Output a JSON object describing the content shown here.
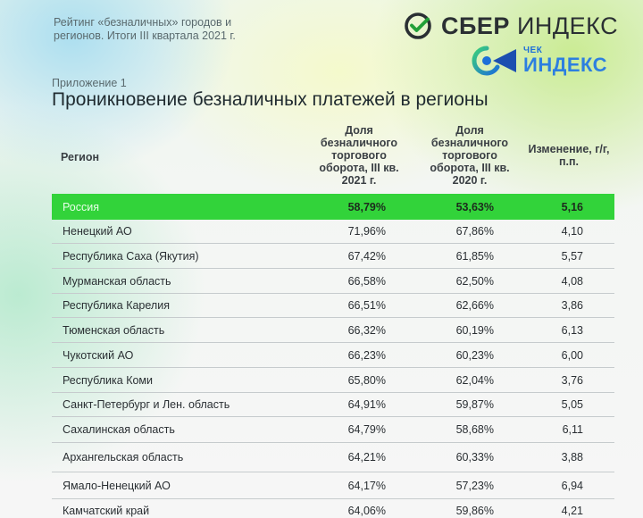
{
  "header": {
    "report_title": "Рейтинг «безналичных» городов и регионов. Итоги III квартала 2021 г.",
    "sber_logo_bold": "СБЕР",
    "sber_logo_light": "ИНДЕКС",
    "chek_logo_small": "ЧЕК",
    "chek_logo_big": "ИНДЕКС",
    "appendix": "Приложение 1",
    "title": "Проникновение безналичных платежей в регионы"
  },
  "table": {
    "columns": {
      "region": "Регион",
      "share_2021": "Доля безналичного торгового оборота, III кв. 2021 г.",
      "share_2020": "Доля безналичного торгового оборота, III кв. 2020 г.",
      "change": "Изменение, г/г, п.п."
    },
    "rows": [
      {
        "region": "Россия",
        "share_2021": "58,79%",
        "share_2020": "53,63%",
        "change": "5,16",
        "highlight": true
      },
      {
        "region": "Ненецкий АО",
        "share_2021": "71,96%",
        "share_2020": "67,86%",
        "change": "4,10"
      },
      {
        "region": "Республика Саха (Якутия)",
        "share_2021": "67,42%",
        "share_2020": "61,85%",
        "change": "5,57"
      },
      {
        "region": "Мурманская область",
        "share_2021": "66,58%",
        "share_2020": "62,50%",
        "change": "4,08"
      },
      {
        "region": "Республика Карелия",
        "share_2021": "66,51%",
        "share_2020": "62,66%",
        "change": "3,86"
      },
      {
        "region": "Тюменская область",
        "share_2021": "66,32%",
        "share_2020": "60,19%",
        "change": "6,13"
      },
      {
        "region": "Чукотский АО",
        "share_2021": "66,23%",
        "share_2020": "60,23%",
        "change": "6,00"
      },
      {
        "region": "Республика Коми",
        "share_2021": "65,80%",
        "share_2020": "62,04%",
        "change": "3,76"
      },
      {
        "region": "Санкт-Петербург и Лен. область",
        "share_2021": "64,91%",
        "share_2020": "59,87%",
        "change": "5,05"
      },
      {
        "region": "Сахалинская область",
        "share_2021": "64,79%",
        "share_2020": "58,68%",
        "change": "6,11"
      },
      {
        "region": "Архангельская область",
        "share_2021": "64,21%",
        "share_2020": "60,33%",
        "change": "3,88"
      },
      {
        "region": "Ямало-Ненецкий АО",
        "share_2021": "64,17%",
        "share_2020": "57,23%",
        "change": "6,94"
      },
      {
        "region": "Камчатский край",
        "share_2021": "64,06%",
        "share_2020": "59,86%",
        "change": "4,21"
      }
    ]
  },
  "colors": {
    "highlight_row": "#32d33a",
    "sber_green": "#21a038",
    "chek_blue": "#2d7fe0"
  }
}
